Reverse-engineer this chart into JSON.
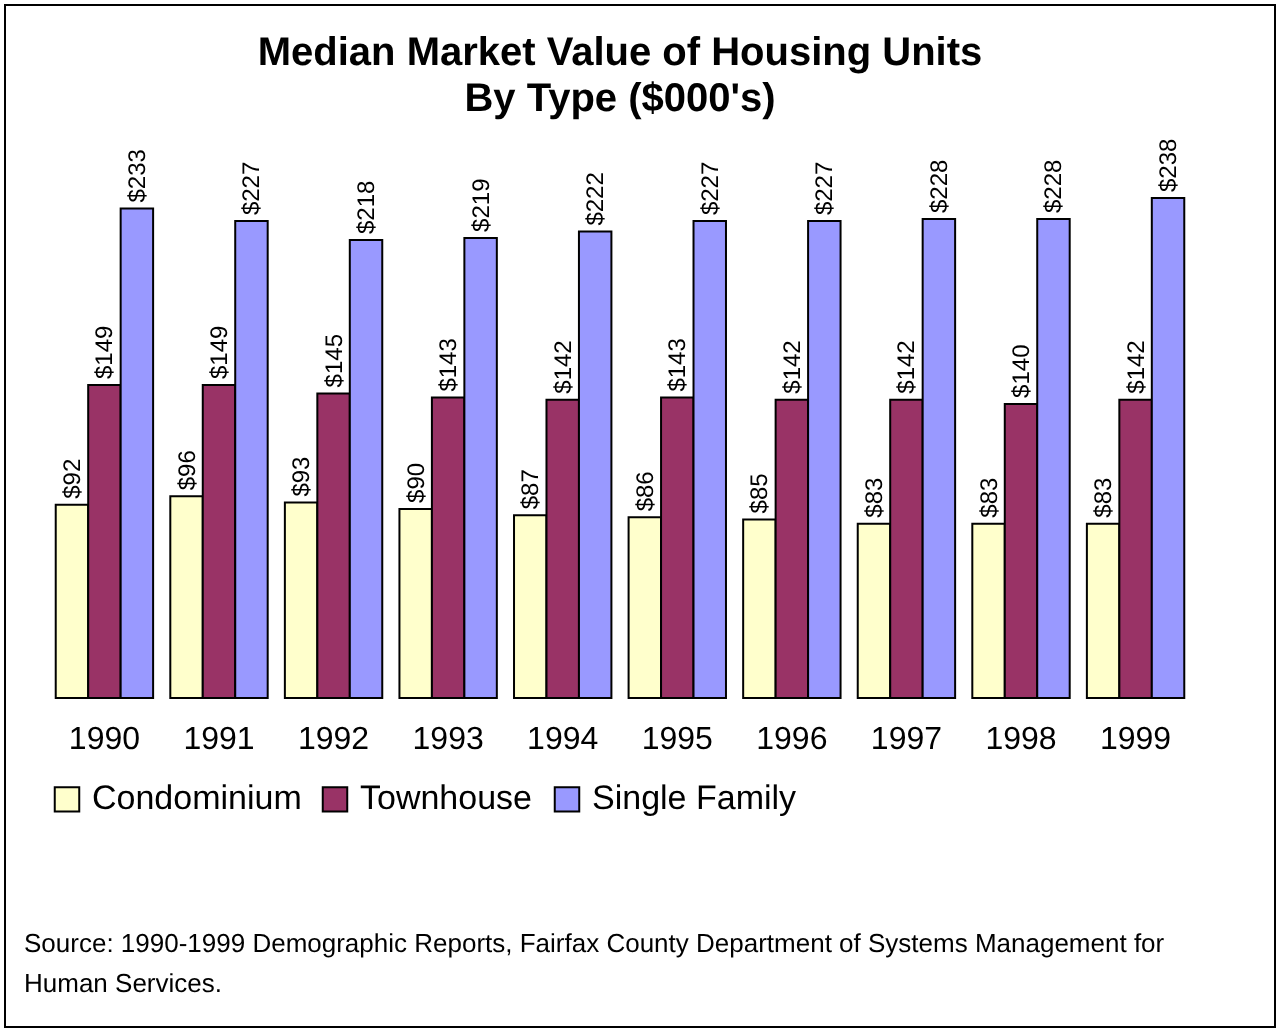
{
  "chart_data": {
    "type": "bar",
    "title": "Median Market Value of Housing Units",
    "subtitle": "By Type ($000's)",
    "categories": [
      "1990",
      "1991",
      "1992",
      "1993",
      "1994",
      "1995",
      "1996",
      "1997",
      "1998",
      "1999"
    ],
    "series": [
      {
        "name": "Condominium",
        "color": "#ffffcc",
        "values": [
          92,
          96,
          93,
          90,
          87,
          86,
          85,
          83,
          83,
          83
        ],
        "value_labels": [
          "$92",
          "$96",
          "$93",
          "$90",
          "$87",
          "$86",
          "$85",
          "$83",
          "$83",
          "$83"
        ]
      },
      {
        "name": "Townhouse",
        "color": "#993366",
        "values": [
          149,
          149,
          145,
          143,
          142,
          143,
          142,
          142,
          140,
          142
        ],
        "value_labels": [
          "$149",
          "$149",
          "$145",
          "$143",
          "$142",
          "$143",
          "$142",
          "$142",
          "$140",
          "$142"
        ]
      },
      {
        "name": "Single Family",
        "color": "#9999ff",
        "values": [
          233,
          227,
          218,
          219,
          222,
          227,
          227,
          228,
          228,
          238
        ],
        "value_labels": [
          "$233",
          "$227",
          "$218",
          "$219",
          "$222",
          "$227",
          "$227",
          "$228",
          "$228",
          "$238"
        ]
      }
    ],
    "legend": "bottom",
    "grid": false,
    "annotations": [
      "Source: 1990-1999 Demographic Reports, Fairfax County Department of Systems Management for Human Services."
    ]
  }
}
